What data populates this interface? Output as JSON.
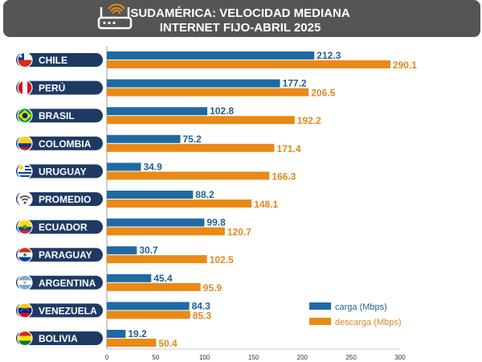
{
  "header": {
    "title_line1": "SUDAMÉRICA: VELOCIDAD MEDIANA",
    "title_line2": "INTERNET FIJO-ABRIL 2025",
    "icon": "router-wifi-icon"
  },
  "colors": {
    "header_bg": "#555555",
    "pill": "#1e3a64",
    "carga": "#1f6aa5",
    "descarga": "#e98a17",
    "carga_text": "#1f5f96",
    "descarga_text": "#e1871d"
  },
  "chart_data": {
    "type": "bar",
    "orientation": "horizontal",
    "title": "SUDAMÉRICA: VELOCIDAD MEDIANA INTERNET FIJO-ABRIL 2025",
    "categories": [
      "CHILE",
      "PERÚ",
      "BRASIL",
      "COLOMBIA",
      "URUGUAY",
      "PROMEDIO",
      "ECUADOR",
      "PARAGUAY",
      "ARGENTINA",
      "VENEZUELA",
      "BOLIVIA"
    ],
    "series": [
      {
        "name": "carga (Mbps)",
        "values": [
          212.3,
          177.2,
          102.8,
          75.2,
          34.9,
          88.2,
          99.8,
          30.7,
          45.4,
          84.3,
          19.2
        ]
      },
      {
        "name": "descarga (Mbps)",
        "values": [
          290.1,
          206.5,
          192.2,
          171.4,
          166.3,
          148.1,
          120.7,
          102.5,
          95.9,
          85.3,
          50.4
        ]
      }
    ],
    "value_labels": {
      "carga": [
        "212.3",
        "177.2",
        "102.8",
        "75.2",
        "34.9",
        "88.2",
        "99.8",
        "30.7",
        "45.4",
        "84.3",
        "19.2"
      ],
      "descarga": [
        "290.1",
        "206.5",
        "192.2",
        "171.4",
        "166.3",
        "148.1",
        "120.7",
        "102.5",
        "95.9",
        "85.3",
        "50.4"
      ]
    },
    "xlim": [
      0,
      300
    ],
    "xticks": [
      "0",
      "50",
      "100",
      "150",
      "200",
      "250",
      "300"
    ],
    "legend_position": "bottom-right",
    "legend": [
      "carga (Mbps)",
      "descarga (Mbps)"
    ],
    "grid": false,
    "flags": [
      "chile",
      "peru",
      "brasil",
      "colombia",
      "uruguay",
      "wifi-icon",
      "ecuador",
      "paraguay",
      "argentina",
      "venezuela",
      "bolivia"
    ]
  }
}
